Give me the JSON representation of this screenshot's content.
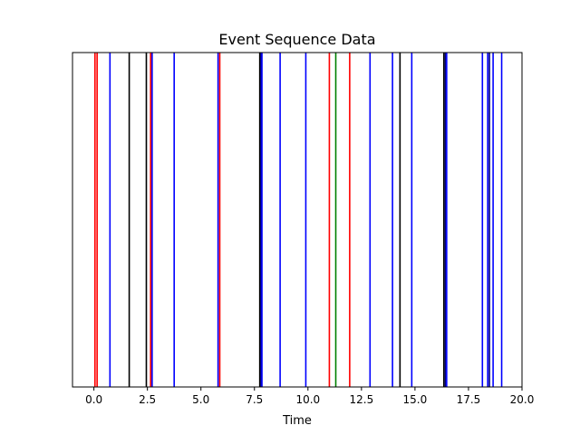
{
  "chart_data": {
    "type": "eventplot",
    "title": "Event Sequence Data",
    "xlabel": "Time",
    "ylabel": "",
    "xlim": [
      -1.0,
      20.0
    ],
    "ylim": [
      0,
      1
    ],
    "grid": false,
    "legend": "none",
    "xticks": [
      0.0,
      2.5,
      5.0,
      7.5,
      10.0,
      12.5,
      15.0,
      17.5,
      20.0
    ],
    "xtick_labels": [
      "0.0",
      "2.5",
      "5.0",
      "7.5",
      "10.0",
      "12.5",
      "15.0",
      "17.5",
      "20.0"
    ],
    "events": [
      {
        "x": 0.05,
        "color": "#ff0000"
      },
      {
        "x": 0.15,
        "color": "#ff0000"
      },
      {
        "x": 0.75,
        "color": "#0000ff"
      },
      {
        "x": 1.65,
        "color": "#000000"
      },
      {
        "x": 2.45,
        "color": "#000000"
      },
      {
        "x": 2.65,
        "color": "#ff0000"
      },
      {
        "x": 2.72,
        "color": "#0000ff"
      },
      {
        "x": 3.75,
        "color": "#0000ff"
      },
      {
        "x": 5.8,
        "color": "#0000ff"
      },
      {
        "x": 5.88,
        "color": "#ff0000"
      },
      {
        "x": 7.75,
        "color": "#000000"
      },
      {
        "x": 7.8,
        "color": "#000080"
      },
      {
        "x": 7.85,
        "color": "#0000ff"
      },
      {
        "x": 8.7,
        "color": "#0000ff"
      },
      {
        "x": 9.9,
        "color": "#0000ff"
      },
      {
        "x": 11.0,
        "color": "#ff0000"
      },
      {
        "x": 11.3,
        "color": "#008000"
      },
      {
        "x": 11.95,
        "color": "#ff0000"
      },
      {
        "x": 12.9,
        "color": "#0000ff"
      },
      {
        "x": 13.95,
        "color": "#0000ff"
      },
      {
        "x": 14.3,
        "color": "#000000"
      },
      {
        "x": 14.85,
        "color": "#0000ff"
      },
      {
        "x": 16.35,
        "color": "#000000"
      },
      {
        "x": 16.42,
        "color": "#000080"
      },
      {
        "x": 16.48,
        "color": "#0000ff"
      },
      {
        "x": 18.15,
        "color": "#0000ff"
      },
      {
        "x": 18.4,
        "color": "#0000ff"
      },
      {
        "x": 18.48,
        "color": "#000080"
      },
      {
        "x": 18.65,
        "color": "#0000ff"
      },
      {
        "x": 19.05,
        "color": "#0000ff"
      }
    ]
  }
}
